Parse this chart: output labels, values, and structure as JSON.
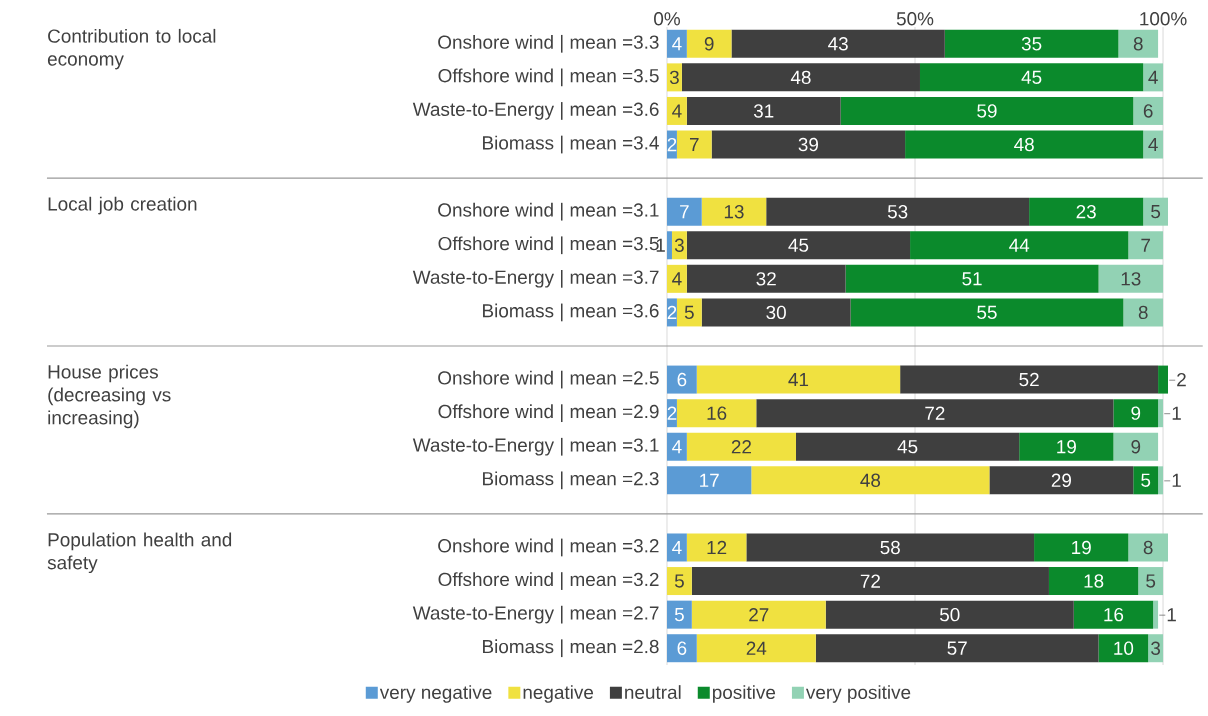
{
  "chart_data": {
    "type": "bar",
    "orientation": "horizontal",
    "stacked": true,
    "categories": [
      "Onshore wind | mean =3.3",
      "Offshore wind | mean =3.5",
      "Waste-to-Energy | mean =3.6",
      "Biomass | mean =3.4",
      "Onshore wind | mean =3.1",
      "Offshore wind | mean =3.5",
      "Waste-to-Energy | mean =3.7",
      "Biomass | mean =3.6",
      "Onshore wind | mean =2.5",
      "Offshore wind | mean =2.9",
      "Waste-to-Energy | mean =3.1",
      "Biomass | mean =2.3",
      "Onshore wind | mean =3.2",
      "Offshore wind | mean =3.2",
      "Waste-to-Energy | mean =2.7",
      "Biomass | mean =2.8"
    ],
    "annotations": [
      "Contribution to local economy",
      "Local job creation",
      "House prices (decreasing vs increasing)",
      "Population health and safety"
    ],
    "series": [
      {
        "name": "very negative",
        "color": "#5b9bd5",
        "values": [
          4,
          0,
          0,
          2,
          7,
          1,
          0,
          2,
          6,
          2,
          4,
          17,
          4,
          0,
          5,
          6
        ],
        "value_labels": [
          "4",
          null,
          null,
          "2",
          "7",
          "1",
          null,
          "2",
          "6",
          "2",
          "4",
          "17",
          "4",
          null,
          "5",
          "6"
        ]
      },
      {
        "name": "negative",
        "color": "#f0e140",
        "values": [
          9,
          3,
          4,
          7,
          13,
          3,
          4,
          5,
          41,
          16,
          22,
          48,
          12,
          5,
          27,
          24
        ],
        "value_labels": [
          "9",
          "3",
          "4",
          "7",
          "13",
          "3",
          "4",
          "5",
          "41",
          "16",
          "22",
          "48",
          "12",
          "5",
          "27",
          "24"
        ]
      },
      {
        "name": "neutral",
        "color": "#3f3f3f",
        "values": [
          43,
          48,
          31,
          39,
          53,
          45,
          32,
          30,
          52,
          72,
          45,
          29,
          58,
          72,
          50,
          57
        ],
        "value_labels": [
          "43",
          "48",
          "31",
          "39",
          "53",
          "45",
          "32",
          "30",
          "52",
          "72",
          "45",
          "29",
          "58",
          "72",
          "50",
          "57"
        ]
      },
      {
        "name": "positive",
        "color": "#0b8a2c",
        "values": [
          35,
          45,
          59,
          48,
          23,
          44,
          51,
          55,
          2,
          9,
          19,
          5,
          19,
          18,
          16,
          10
        ],
        "value_labels": [
          "35",
          "45",
          "59",
          "48",
          "23",
          "44",
          "51",
          "55",
          "2",
          "9",
          "19",
          "5",
          "19",
          "18",
          "16",
          "10"
        ]
      },
      {
        "name": "very positive",
        "color": "#92d2b4",
        "values": [
          8,
          4,
          6,
          4,
          5,
          7,
          13,
          8,
          0,
          1,
          9,
          1,
          8,
          5,
          1,
          3
        ],
        "value_labels": [
          "8",
          "4",
          "6",
          "4",
          "5",
          "7",
          "13",
          "8",
          null,
          "1",
          "9",
          "1",
          "8",
          "5",
          "1",
          "3"
        ]
      }
    ],
    "xlim": [
      0,
      101
    ],
    "xticks": [
      {
        "value": 0,
        "label": "0%"
      },
      {
        "value": 50,
        "label": "50%"
      },
      {
        "value": 100,
        "label": "100%"
      }
    ],
    "grid": "x",
    "legend": "bottom"
  }
}
